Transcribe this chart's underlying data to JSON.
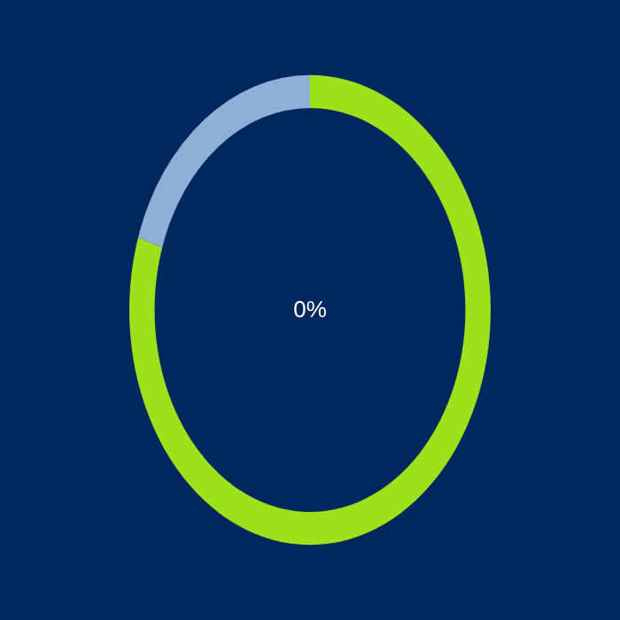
{
  "chart_data": {
    "type": "donut",
    "categories": [
      null,
      null
    ],
    "values": [
      80,
      20
    ],
    "colors": [
      "#9ee01c",
      "#8fb0d6"
    ],
    "annotations": [
      "0%"
    ]
  }
}
